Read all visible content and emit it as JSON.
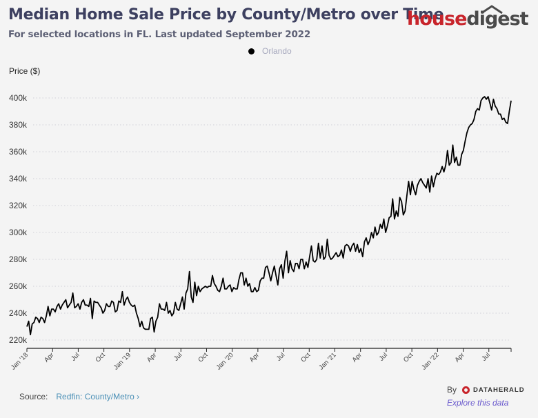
{
  "header": {
    "title": "Median Home Sale Price by County/Metro over Time",
    "subtitle": "For selected locations in FL. Last updated September 2022",
    "logo_part1": "house",
    "logo_part2": "digest"
  },
  "legend": {
    "items": [
      {
        "label": "Orlando",
        "color": "#000000"
      }
    ]
  },
  "footer": {
    "source_label": "Source:",
    "source_link": "Redfin: County/Metro",
    "by_label": "By",
    "brand": "DATAHERALD",
    "explore_link": "Explore this data"
  },
  "chart_data": {
    "type": "line",
    "title": "Median Home Sale Price by County/Metro over Time",
    "subtitle": "For selected locations in FL. Last updated September 2022",
    "ylabel": "Price ($)",
    "xlabel": "",
    "ylim": [
      220000,
      400000
    ],
    "yticks": [
      220000,
      240000,
      260000,
      280000,
      300000,
      320000,
      340000,
      360000,
      380000,
      400000
    ],
    "ytick_labels": [
      "220k",
      "240k",
      "260k",
      "280k",
      "300k",
      "320k",
      "340k",
      "360k",
      "380k",
      "400k"
    ],
    "x_start": "2018-01",
    "x_end": "2022-09",
    "xtick_labels": [
      "Jan '18",
      "Apr",
      "Jul",
      "Oct",
      "Jan '19",
      "Apr",
      "Jul",
      "Oct",
      "Jan '20",
      "Apr",
      "Jul",
      "Oct",
      "Jan '21",
      "Apr",
      "Jul",
      "Oct",
      "Jan '22",
      "Apr",
      "Jul"
    ],
    "grid": true,
    "legend_position": "top-center",
    "frequency": "weekly",
    "series": [
      {
        "name": "Orlando",
        "color": "#000000",
        "values_k": [
          230,
          234,
          224,
          232,
          233,
          237,
          236,
          233,
          237,
          236,
          233,
          238,
          245,
          238,
          243,
          243,
          241,
          245,
          247,
          243,
          246,
          248,
          250,
          244,
          246,
          248,
          255,
          244,
          245,
          247,
          243,
          248,
          250,
          246,
          246,
          245,
          251,
          236,
          249,
          248,
          248,
          246,
          244,
          240,
          242,
          247,
          245,
          245,
          249,
          248,
          241,
          242,
          249,
          248,
          256,
          246,
          250,
          252,
          248,
          246,
          245,
          246,
          240,
          236,
          230,
          234,
          229,
          228,
          228,
          228,
          236,
          237,
          226,
          234,
          237,
          247,
          243,
          243,
          242,
          248,
          240,
          242,
          238,
          240,
          248,
          243,
          242,
          247,
          252,
          243,
          255,
          258,
          271,
          252,
          248,
          263,
          253,
          260,
          256,
          258,
          259,
          260,
          259,
          260,
          260,
          268,
          262,
          260,
          257,
          256,
          260,
          266,
          258,
          258,
          260,
          261,
          256,
          259,
          258,
          258,
          265,
          270,
          270,
          261,
          266,
          260,
          262,
          256,
          256,
          259,
          256,
          257,
          264,
          266,
          266,
          274,
          275,
          270,
          264,
          270,
          275,
          268,
          261,
          273,
          276,
          266,
          279,
          286,
          270,
          279,
          273,
          271,
          277,
          277,
          273,
          280,
          280,
          273,
          278,
          274,
          282,
          290,
          279,
          278,
          280,
          292,
          281,
          290,
          280,
          282,
          295,
          283,
          280,
          281,
          283,
          285,
          282,
          283,
          287,
          281,
          290,
          291,
          290,
          286,
          290,
          292,
          286,
          291,
          285,
          288,
          282,
          293,
          296,
          291,
          294,
          300,
          296,
          304,
          298,
          300,
          306,
          303,
          310,
          300,
          305,
          311,
          312,
          325,
          310,
          316,
          312,
          326,
          323,
          313,
          316,
          327,
          338,
          328,
          338,
          332,
          328,
          335,
          338,
          340,
          337,
          335,
          333,
          340,
          330,
          342,
          334,
          340,
          344,
          343,
          345,
          349,
          345,
          350,
          361,
          350,
          352,
          365,
          352,
          356,
          350,
          350,
          358,
          361,
          368,
          374,
          378,
          380,
          381,
          384,
          390,
          392,
          391,
          398,
          400,
          401,
          399,
          401,
          396,
          391,
          399,
          394,
          392,
          388,
          388,
          384,
          385,
          382,
          381,
          390,
          398
        ]
      }
    ]
  }
}
